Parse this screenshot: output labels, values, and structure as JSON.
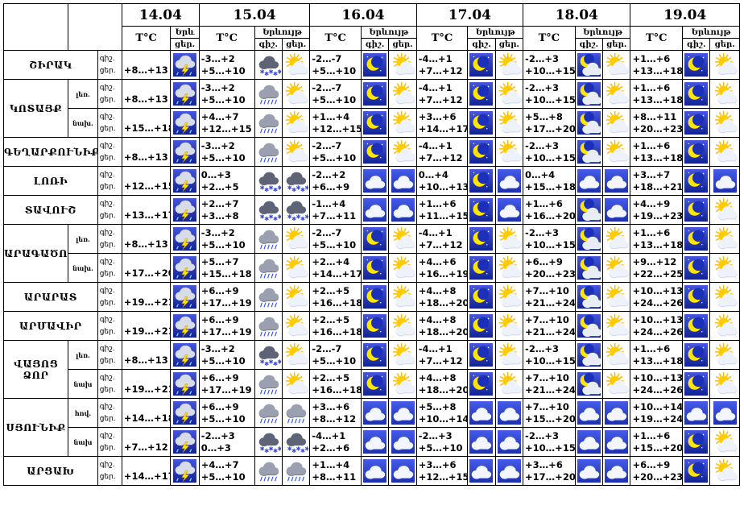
{
  "header": {
    "temp_label": "T°C",
    "weather_label": "Երևույթ",
    "weather_label_short": "Երև",
    "day_label": "ցեր.",
    "night_label": "գիշ.",
    "dates": [
      "14.04",
      "15.04",
      "16.04",
      "17.04",
      "18.04",
      "19.04"
    ]
  },
  "row_label": "գիշ.\nցեր.",
  "rows": [
    {
      "region": "ՇԻՐԱԿ",
      "sub": "",
      "rs": 1,
      "d0": {
        "t": "+8…+13",
        "i": "storm"
      },
      "d": [
        {
          "n": "-3…+2",
          "dd": "+5…+10",
          "in": "snowcloud",
          "id": "sunnycloud"
        },
        {
          "n": "-2…-7",
          "dd": "+5…+10",
          "in": "moon",
          "id": "sunnycloud"
        },
        {
          "n": "-4…+1",
          "dd": "+7…+12",
          "in": "moon",
          "id": "sunnycloud"
        },
        {
          "n": "-2…+3",
          "dd": "+10…+15",
          "in": "mooncloud",
          "id": "sunnycloud"
        },
        {
          "n": "+1…+6",
          "dd": "+13…+18",
          "in": "moon",
          "id": "sunnycloud"
        }
      ]
    },
    {
      "region": "ԿՈՏԱՅՔ",
      "sub": "լեռ.",
      "rs": 2,
      "d0": {
        "t": "+8…+13",
        "i": "storm"
      },
      "d": [
        {
          "n": "-3…+2",
          "dd": "+5…+10",
          "in": "raincloud",
          "id": "sunnycloud"
        },
        {
          "n": "-2…-7",
          "dd": "+5…+10",
          "in": "moon",
          "id": "sunnycloud"
        },
        {
          "n": "-4…+1",
          "dd": "+7…+12",
          "in": "moon",
          "id": "sunnycloud"
        },
        {
          "n": "-2…+3",
          "dd": "+10…+15",
          "in": "mooncloud",
          "id": "sunnycloud"
        },
        {
          "n": "+1…+6",
          "dd": "+13…+18",
          "in": "moon",
          "id": "sunnycloud"
        }
      ]
    },
    {
      "region": "",
      "sub": "նախ.",
      "rs": 0,
      "d0": {
        "t": "+15…+18",
        "i": "storm"
      },
      "d": [
        {
          "n": "+4…+7",
          "dd": "+12…+15",
          "in": "raincloud",
          "id": "sunnycloud"
        },
        {
          "n": "+1…+4",
          "dd": "+12…+15",
          "in": "moon",
          "id": "sunnycloud"
        },
        {
          "n": "+3…+6",
          "dd": "+14…+17",
          "in": "moon",
          "id": "sunnycloud"
        },
        {
          "n": "+5…+8",
          "dd": "+17…+20",
          "in": "mooncloud",
          "id": "sunnycloud"
        },
        {
          "n": "+8…+11",
          "dd": "+20…+23",
          "in": "moon",
          "id": "sunnycloud"
        }
      ]
    },
    {
      "region": "ԳԵՂԱՐՔՈՒՆԻՔ",
      "sub": "",
      "rs": 1,
      "d0": {
        "t": "+8…+13",
        "i": "storm"
      },
      "d": [
        {
          "n": "-3…+2",
          "dd": "+5…+10",
          "in": "raincloud",
          "id": "sunnycloud"
        },
        {
          "n": "-2…-7",
          "dd": "+5…+10",
          "in": "moon",
          "id": "sunnycloud"
        },
        {
          "n": "-4…+1",
          "dd": "+7…+12",
          "in": "moon",
          "id": "sunnycloud"
        },
        {
          "n": "-2…+3",
          "dd": "+10…+15",
          "in": "mooncloud",
          "id": "sunnycloud"
        },
        {
          "n": "+1…+6",
          "dd": "+13…+18",
          "in": "moon",
          "id": "sunnycloud"
        }
      ]
    },
    {
      "region": "ԼՈՌԻ",
      "sub": "",
      "rs": 1,
      "d0": {
        "t": "+12…+15",
        "i": "storm"
      },
      "d": [
        {
          "n": "0…+3",
          "dd": "+2…+5",
          "in": "snowcloud",
          "id": "snowcloud"
        },
        {
          "n": "-2…+2",
          "dd": "+6…+9",
          "in": "cloud",
          "id": "cloud"
        },
        {
          "n": "0…+4",
          "dd": "+10…+13",
          "in": "moon",
          "id": "cloud"
        },
        {
          "n": "0…+4",
          "dd": "+15…+18",
          "in": "cloud",
          "id": "cloud"
        },
        {
          "n": "+3…+7",
          "dd": "+18…+21",
          "in": "moon",
          "id": "cloud"
        }
      ]
    },
    {
      "region": "ՏԱՎՈՒՇ",
      "sub": "",
      "rs": 1,
      "d0": {
        "t": "+13…+17",
        "i": "storm"
      },
      "d": [
        {
          "n": "+2…+7",
          "dd": "+3…+8",
          "in": "snowcloud",
          "id": "snowcloud"
        },
        {
          "n": "-1…+4",
          "dd": "+7…+11",
          "in": "cloud",
          "id": "cloud"
        },
        {
          "n": "+1…+6",
          "dd": "+11…+15",
          "in": "moon",
          "id": "cloud"
        },
        {
          "n": "+1…+6",
          "dd": "+16…+20",
          "in": "mooncloud",
          "id": "cloud"
        },
        {
          "n": "+4…+9",
          "dd": "+19…+23",
          "in": "moon",
          "id": "sunnycloud"
        }
      ]
    },
    {
      "region": "ԱՐԱԳԱԾՈՏՆ",
      "sub": "լեռ.",
      "rs": 2,
      "d0": {
        "t": "+8…+13",
        "i": "storm"
      },
      "d": [
        {
          "n": "-3…+2",
          "dd": "+5…+10",
          "in": "raincloud",
          "id": "sunnycloud"
        },
        {
          "n": "-2…-7",
          "dd": "+5…+10",
          "in": "moon",
          "id": "sunnycloud"
        },
        {
          "n": "-4…+1",
          "dd": "+7…+12",
          "in": "moon",
          "id": "sunnycloud"
        },
        {
          "n": "-2…+3",
          "dd": "+10…+15",
          "in": "mooncloud",
          "id": "sunnycloud"
        },
        {
          "n": "+1…+6",
          "dd": "+13…+18",
          "in": "moon",
          "id": "sunnycloud"
        }
      ]
    },
    {
      "region": "",
      "sub": "նախ.",
      "rs": 0,
      "d0": {
        "t": "+17…+20",
        "i": "storm"
      },
      "d": [
        {
          "n": "+5…+7",
          "dd": "+15…+18",
          "in": "raincloud",
          "id": "sunnycloud"
        },
        {
          "n": "+2…+4",
          "dd": "+14…+17",
          "in": "moon",
          "id": "sunnycloud"
        },
        {
          "n": "+4…+6",
          "dd": "+16…+19",
          "in": "moon",
          "id": "sunnycloud"
        },
        {
          "n": "+6…+9",
          "dd": "+20…+23",
          "in": "mooncloud",
          "id": "sunnycloud"
        },
        {
          "n": "+9…+12",
          "dd": "+22…+25",
          "in": "moon",
          "id": "sunnycloud"
        }
      ]
    },
    {
      "region": "ԱՐԱՐԱՏ",
      "sub": "",
      "rs": 1,
      "d0": {
        "t": "+19…+21",
        "i": "storm"
      },
      "d": [
        {
          "n": "+6…+9",
          "dd": "+17…+19",
          "in": "raincloud",
          "id": "sunnycloud"
        },
        {
          "n": "+2…+5",
          "dd": "+16…+18",
          "in": "moon",
          "id": "sunnycloud"
        },
        {
          "n": "+4…+8",
          "dd": "+18…+20",
          "in": "moon",
          "id": "sunnycloud"
        },
        {
          "n": "+7…+10",
          "dd": "+21…+24",
          "in": "mooncloud",
          "id": "sunnycloud"
        },
        {
          "n": "+10…+13",
          "dd": "+24…+26",
          "in": "moon",
          "id": "sunnycloud"
        }
      ]
    },
    {
      "region": "ԱՐՄԱՎԻՐ",
      "sub": "",
      "rs": 1,
      "d0": {
        "t": "+19…+21",
        "i": "storm"
      },
      "d": [
        {
          "n": "+6…+9",
          "dd": "+17…+19",
          "in": "raincloud",
          "id": "sunnycloud"
        },
        {
          "n": "+2…+5",
          "dd": "+16…+18",
          "in": "moon",
          "id": "sunnycloud"
        },
        {
          "n": "+4…+8",
          "dd": "+18…+20",
          "in": "moon",
          "id": "sunnycloud"
        },
        {
          "n": "+7…+10",
          "dd": "+21…+24",
          "in": "mooncloud",
          "id": "sunnycloud"
        },
        {
          "n": "+10…+13",
          "dd": "+24…+26",
          "in": "moon",
          "id": "sunnycloud"
        }
      ]
    },
    {
      "region": "ՎԱՅՈՑ ՁՈՐ",
      "sub": "լեռ.",
      "rs": 2,
      "d0": {
        "t": "+8…+13",
        "i": "storm"
      },
      "d": [
        {
          "n": "-3…+2",
          "dd": "+5…+10",
          "in": "snowcloud",
          "id": "sunnycloud"
        },
        {
          "n": "-2…-7",
          "dd": "+5…+10",
          "in": "moon",
          "id": "sunnycloud"
        },
        {
          "n": "-4…+1",
          "dd": "+7…+12",
          "in": "moon",
          "id": "sunnycloud"
        },
        {
          "n": "-2…+3",
          "dd": "+10…+15",
          "in": "mooncloud",
          "id": "sunnycloud"
        },
        {
          "n": "+1…+6",
          "dd": "+13…+18",
          "in": "moon",
          "id": "sunnycloud"
        }
      ]
    },
    {
      "region": "",
      "sub": "նախ",
      "rs": 0,
      "d0": {
        "t": "+19…+21",
        "i": "storm"
      },
      "d": [
        {
          "n": "+6…+9",
          "dd": "+17…+19",
          "in": "raincloud",
          "id": "sunnycloud"
        },
        {
          "n": "+2…+5",
          "dd": "+16…+18",
          "in": "moon",
          "id": "sunnycloud"
        },
        {
          "n": "+4…+8",
          "dd": "+18…+20",
          "in": "moon",
          "id": "sunnycloud"
        },
        {
          "n": "+7…+10",
          "dd": "+21…+24",
          "in": "mooncloud",
          "id": "sunnycloud"
        },
        {
          "n": "+10…+13",
          "dd": "+24…+26",
          "in": "moon",
          "id": "sunnycloud"
        }
      ]
    },
    {
      "region": "ՍՅՈՒՆԻՔ",
      "sub": "հով.",
      "rs": 2,
      "d0": {
        "t": "+14…+18",
        "i": "storm"
      },
      "d": [
        {
          "n": "+6…+9",
          "dd": "+5…+10",
          "in": "raincloud",
          "id": "raincloud"
        },
        {
          "n": "+3…+6",
          "dd": "+8…+12",
          "in": "cloud",
          "id": "cloud"
        },
        {
          "n": "+5…+8",
          "dd": "+10…+14",
          "in": "cloud",
          "id": "cloud"
        },
        {
          "n": "+7…+10",
          "dd": "+15…+20",
          "in": "cloud",
          "id": "cloud"
        },
        {
          "n": "+10…+14",
          "dd": "+19…+24",
          "in": "cloud",
          "id": "cloud"
        }
      ]
    },
    {
      "region": "",
      "sub": "նախ",
      "rs": 0,
      "d0": {
        "t": "+7…+12",
        "i": "storm"
      },
      "d": [
        {
          "n": "-2…+3",
          "dd": "0…+3",
          "in": "snowcloud",
          "id": "snowcloud"
        },
        {
          "n": "-4…+1",
          "dd": "+2…+6",
          "in": "cloud",
          "id": "cloud"
        },
        {
          "n": "-2…+3",
          "dd": "+5…+10",
          "in": "cloud",
          "id": "cloud"
        },
        {
          "n": "-2…+3",
          "dd": "+10…+15",
          "in": "cloud",
          "id": "cloud"
        },
        {
          "n": "+1…+6",
          "dd": "+15…+20",
          "in": "moon",
          "id": "sunnycloud"
        }
      ]
    },
    {
      "region": "ԱՐՑԱԽ",
      "sub": "",
      "rs": 1,
      "d0": {
        "t": "+14…+17",
        "i": "storm"
      },
      "d": [
        {
          "n": "+4…+7",
          "dd": "+5…+10",
          "in": "raincloud",
          "id": "raincloud"
        },
        {
          "n": "+1…+4",
          "dd": "+8…+11",
          "in": "cloud",
          "id": "cloud"
        },
        {
          "n": "+3…+6",
          "dd": "+12…+15",
          "in": "cloud",
          "id": "cloud"
        },
        {
          "n": "+3…+6",
          "dd": "+17…+20",
          "in": "cloud",
          "id": "cloud"
        },
        {
          "n": "+6…+9",
          "dd": "+20…+23",
          "in": "moon",
          "id": "sunnycloud"
        }
      ]
    }
  ]
}
